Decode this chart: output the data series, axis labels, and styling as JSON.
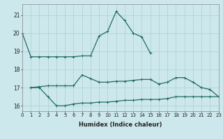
{
  "xlabel": "Humidex (Indice chaleur)",
  "x": [
    0,
    1,
    2,
    3,
    4,
    5,
    6,
    7,
    8,
    9,
    10,
    11,
    12,
    13,
    14,
    15,
    16,
    17,
    18,
    19,
    20,
    21,
    22,
    23
  ],
  "line1": [
    20.0,
    18.7,
    18.7,
    18.7,
    18.7,
    18.7,
    18.7,
    18.75,
    18.75,
    19.85,
    20.1,
    21.2,
    20.7,
    20.0,
    19.8,
    18.9,
    null,
    null,
    null,
    null,
    null,
    null,
    null,
    null
  ],
  "line2": [
    null,
    17.0,
    17.05,
    17.1,
    17.1,
    17.1,
    17.1,
    17.7,
    17.5,
    17.3,
    17.3,
    17.35,
    17.35,
    17.4,
    17.45,
    17.45,
    17.2,
    17.3,
    17.55,
    17.55,
    17.3,
    17.0,
    16.9,
    16.5
  ],
  "line3": [
    null,
    17.0,
    17.0,
    16.5,
    16.0,
    16.0,
    16.1,
    16.15,
    16.15,
    16.2,
    16.2,
    16.25,
    16.3,
    16.3,
    16.35,
    16.35,
    16.35,
    16.4,
    16.5,
    16.5,
    16.5,
    16.5,
    16.5,
    16.5
  ],
  "bg_color": "#cde8ec",
  "grid_color": "#aacdd4",
  "line_color": "#1e6b65",
  "ylim": [
    15.7,
    21.6
  ],
  "yticks": [
    16,
    17,
    18,
    19,
    20,
    21
  ],
  "xlim": [
    0,
    23
  ]
}
